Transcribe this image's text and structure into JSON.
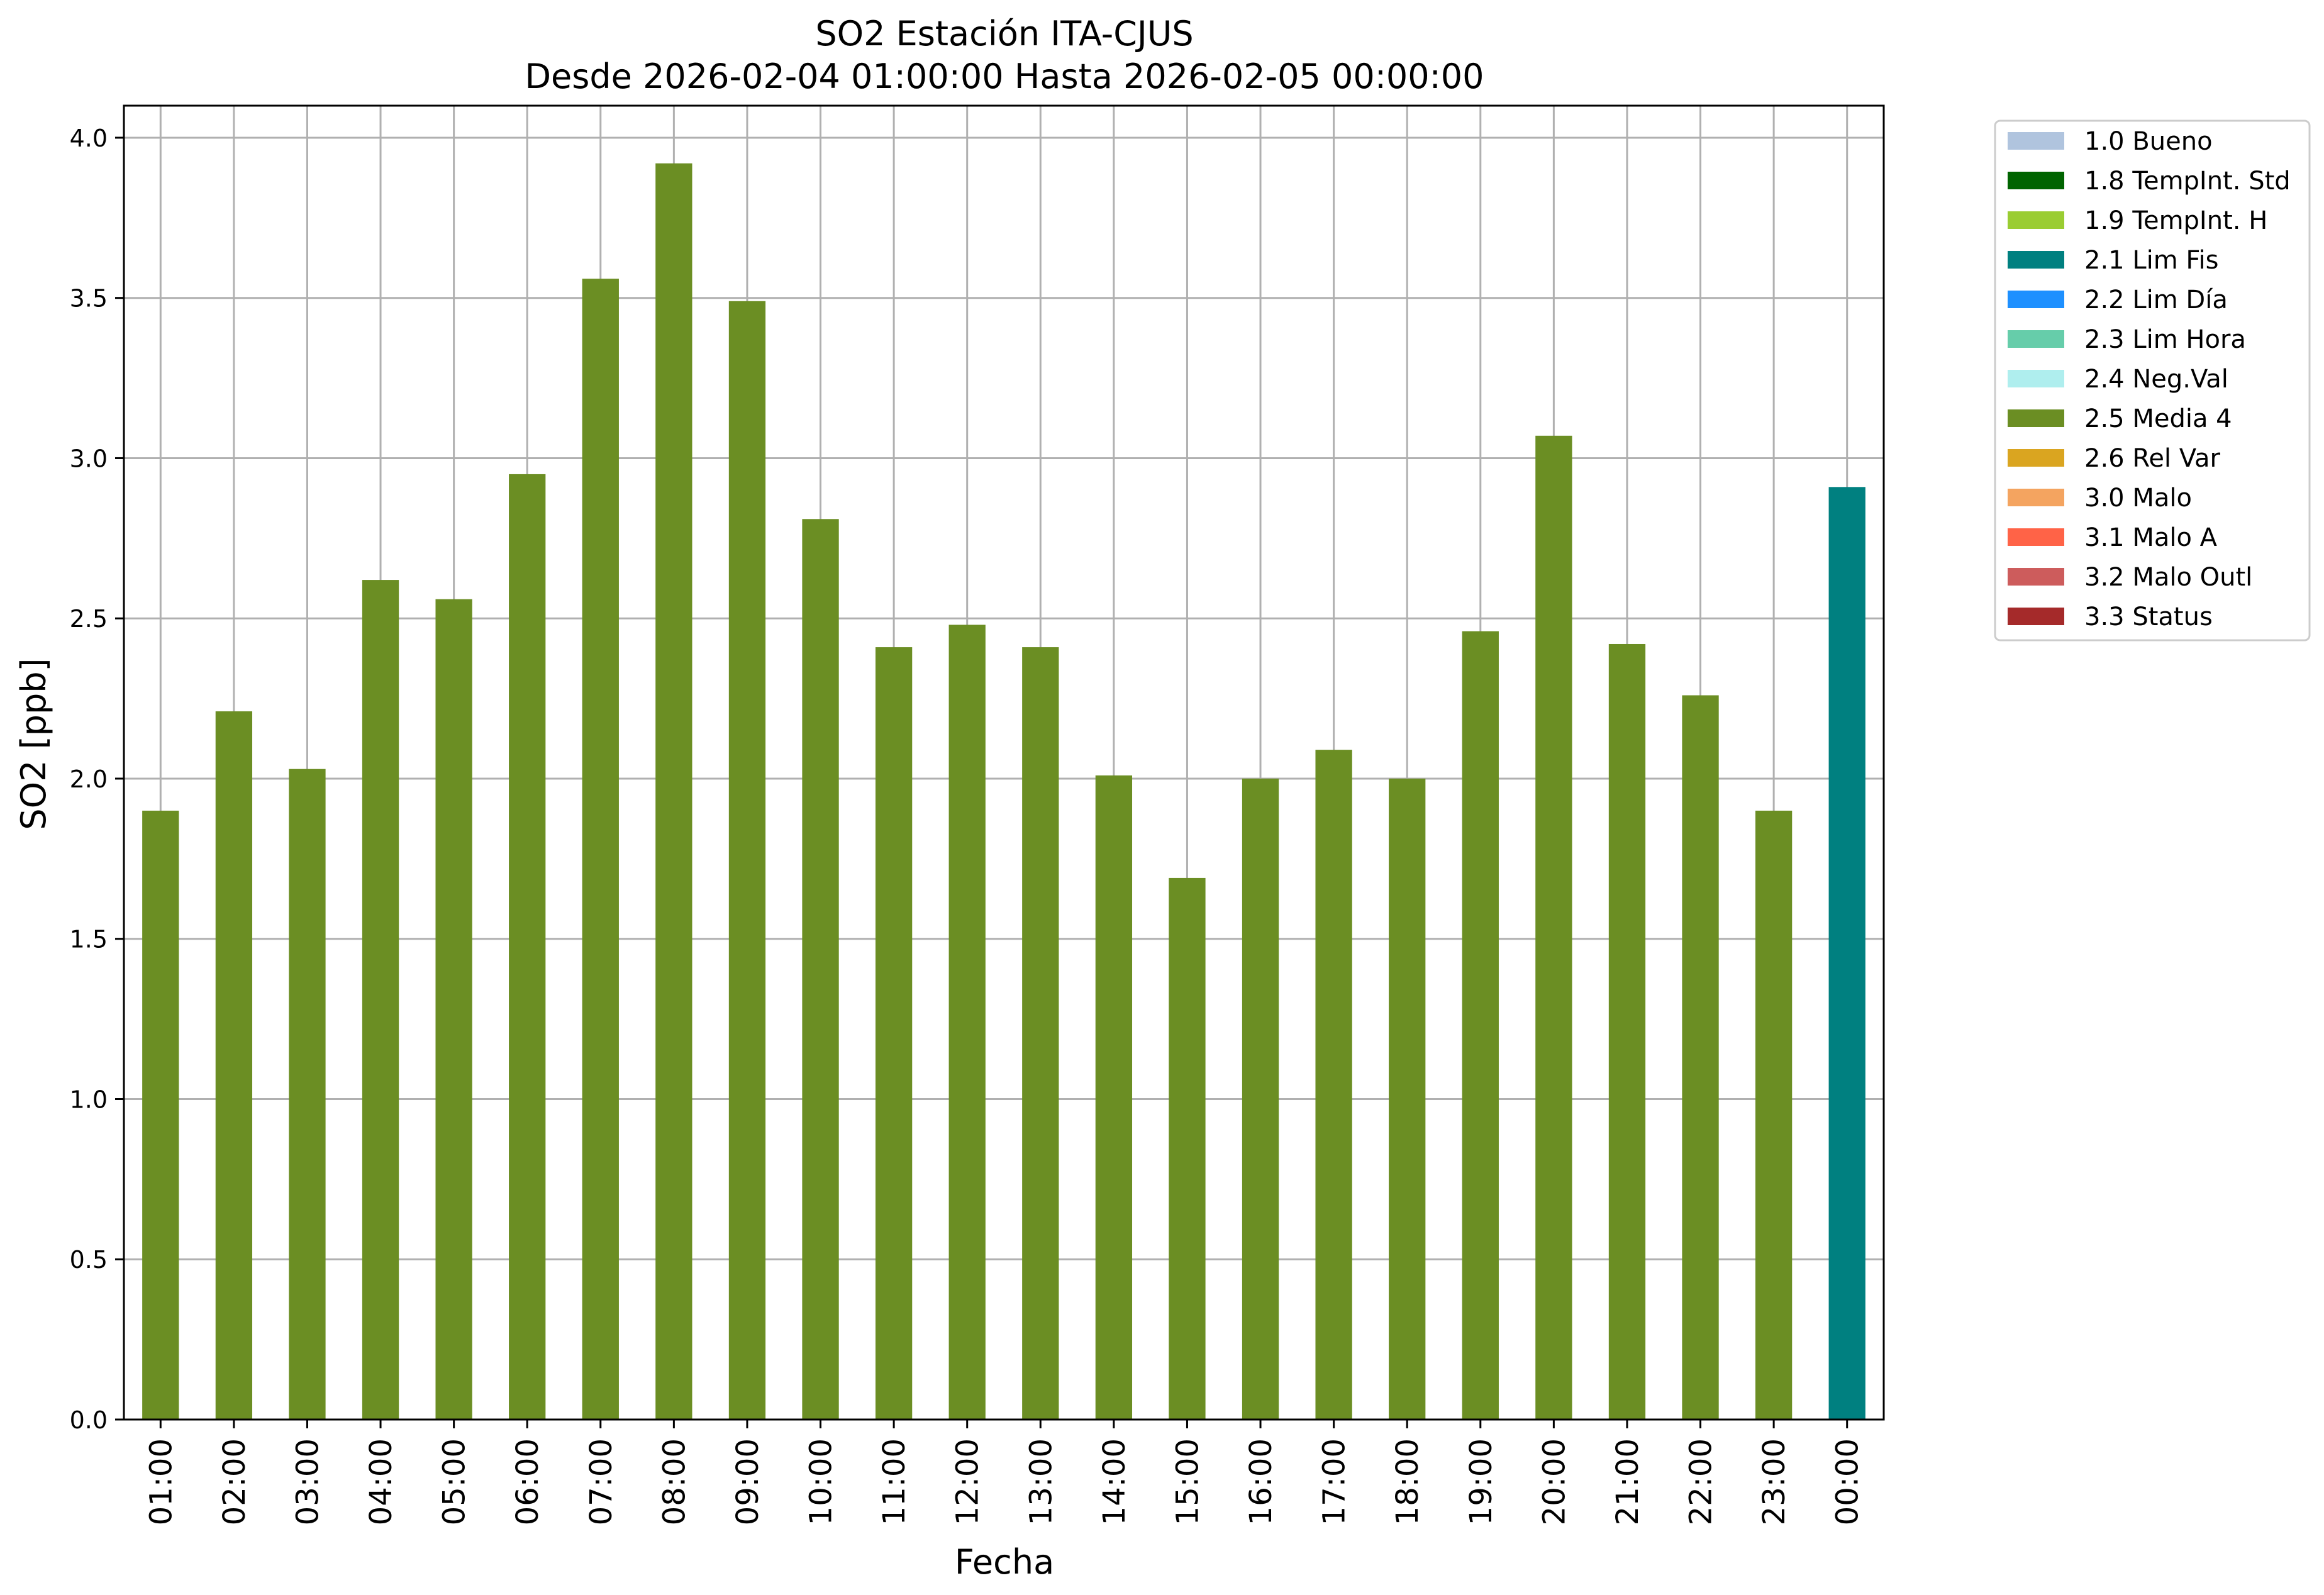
{
  "chart_data": {
    "type": "bar",
    "title": "SO2 Estación ITA-CJUS",
    "subtitle": "Desde 2026-02-04 01:00:00 Hasta 2026-02-05 00:00:00",
    "xlabel": "Fecha",
    "ylabel": "SO2 [ppb]",
    "ylim": [
      0,
      4.1
    ],
    "yticks": [
      "0.0",
      "0.5",
      "1.0",
      "1.5",
      "2.0",
      "2.5",
      "3.0",
      "3.5",
      "4.0"
    ],
    "grid": true,
    "legend_position": "outside-top-right",
    "categories": [
      "01:00",
      "02:00",
      "03:00",
      "04:00",
      "05:00",
      "06:00",
      "07:00",
      "08:00",
      "09:00",
      "10:00",
      "11:00",
      "12:00",
      "13:00",
      "14:00",
      "15:00",
      "16:00",
      "17:00",
      "18:00",
      "19:00",
      "20:00",
      "21:00",
      "22:00",
      "23:00",
      "00:00"
    ],
    "values": [
      1.9,
      2.21,
      2.03,
      2.62,
      2.56,
      2.95,
      3.56,
      3.92,
      3.49,
      2.81,
      2.41,
      2.48,
      2.41,
      2.01,
      1.69,
      2.0,
      2.09,
      2.0,
      2.46,
      3.07,
      2.42,
      2.26,
      1.9,
      2.91
    ],
    "bar_flags": [
      "2.5 Media 4",
      "2.5 Media 4",
      "2.5 Media 4",
      "2.5 Media 4",
      "2.5 Media 4",
      "2.5 Media 4",
      "2.5 Media 4",
      "2.5 Media 4",
      "2.5 Media 4",
      "2.5 Media 4",
      "2.5 Media 4",
      "2.5 Media 4",
      "2.5 Media 4",
      "2.5 Media 4",
      "2.5 Media 4",
      "2.5 Media 4",
      "2.5 Media 4",
      "2.5 Media 4",
      "2.5 Media 4",
      "2.5 Media 4",
      "2.5 Media 4",
      "2.5 Media 4",
      "2.5 Media 4",
      "2.1 Lim Fis"
    ],
    "legend": [
      {
        "label": "1.0 Bueno",
        "color": "#b0c4de"
      },
      {
        "label": "1.8 TempInt. Std",
        "color": "#006400"
      },
      {
        "label": "1.9 TempInt. H",
        "color": "#9acd32"
      },
      {
        "label": "2.1 Lim Fis",
        "color": "#008080"
      },
      {
        "label": "2.2 Lim Día",
        "color": "#1e90ff"
      },
      {
        "label": "2.3 Lim Hora",
        "color": "#66cdaa"
      },
      {
        "label": "2.4 Neg.Val",
        "color": "#afeeee"
      },
      {
        "label": "2.5 Media 4",
        "color": "#6b8e23"
      },
      {
        "label": "2.6 Rel Var",
        "color": "#daa520"
      },
      {
        "label": "3.0 Malo",
        "color": "#f4a460"
      },
      {
        "label": "3.1 Malo A",
        "color": "#ff6347"
      },
      {
        "label": "3.2 Malo Outl",
        "color": "#cd5c5c"
      },
      {
        "label": "3.3 Status",
        "color": "#a52a2a"
      }
    ]
  }
}
